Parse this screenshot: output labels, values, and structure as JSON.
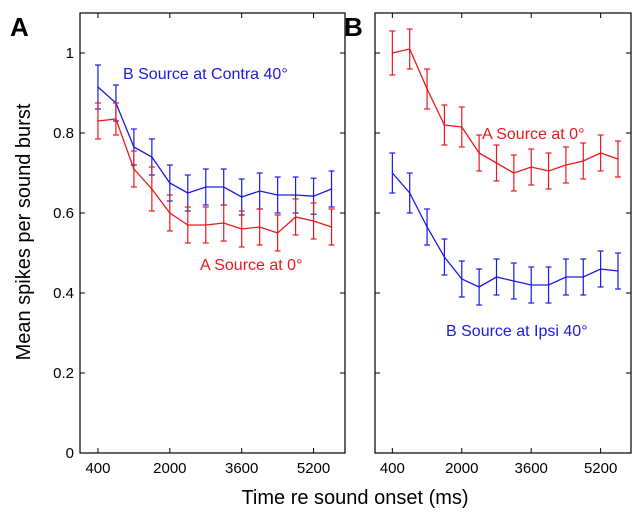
{
  "colors": {
    "red": "#e8191e",
    "blue": "#1a1ae6",
    "axis": "#000000",
    "background": "#ffffff"
  },
  "x_label": "Time re sound onset (ms)",
  "y_label": "Mean spikes per sound burst",
  "chart_data": [
    {
      "type": "line",
      "panel_label": "A",
      "x": [
        400,
        800,
        1200,
        1600,
        2000,
        2400,
        2800,
        3200,
        3600,
        4000,
        4400,
        4800,
        5200,
        5600
      ],
      "xticks": [
        400,
        2000,
        3600,
        5200
      ],
      "xtick_labels": [
        "400",
        "2000",
        "3600",
        "5200"
      ],
      "xlim": [
        0,
        5900
      ],
      "ylim": [
        0,
        1.1
      ],
      "yticks": [
        0,
        0.2,
        0.4,
        0.6,
        0.8,
        1
      ],
      "ytick_labels": [
        "0",
        "0.2",
        "0.4",
        "0.6",
        "0.8",
        "1"
      ],
      "error_bars": true,
      "series": [
        {
          "name": "B Source at Contra 40°",
          "color": "#1a1ae6",
          "values": [
            0.915,
            0.875,
            0.765,
            0.74,
            0.675,
            0.65,
            0.665,
            0.665,
            0.64,
            0.655,
            0.645,
            0.645,
            0.642,
            0.66
          ],
          "errors": [
            0.055,
            0.045,
            0.045,
            0.045,
            0.045,
            0.045,
            0.045,
            0.045,
            0.045,
            0.045,
            0.045,
            0.045,
            0.045,
            0.045
          ]
        },
        {
          "name": "A Source at 0°",
          "color": "#e8191e",
          "values": [
            0.83,
            0.835,
            0.71,
            0.66,
            0.6,
            0.57,
            0.57,
            0.575,
            0.56,
            0.565,
            0.55,
            0.59,
            0.58,
            0.565
          ],
          "errors": [
            0.045,
            0.04,
            0.045,
            0.055,
            0.045,
            0.045,
            0.045,
            0.045,
            0.045,
            0.045,
            0.045,
            0.045,
            0.045,
            0.045
          ]
        }
      ],
      "annotations": [
        {
          "text": "B Source at Contra 40°",
          "color": "#1a1ae6"
        },
        {
          "text": "A Source at 0°",
          "color": "#e8191e"
        }
      ]
    },
    {
      "type": "line",
      "panel_label": "B",
      "x": [
        400,
        800,
        1200,
        1600,
        2000,
        2400,
        2800,
        3200,
        3600,
        4000,
        4400,
        4800,
        5200,
        5600
      ],
      "xticks": [
        400,
        2000,
        3600,
        5200
      ],
      "xtick_labels": [
        "400",
        "2000",
        "3600",
        "5200"
      ],
      "xlim": [
        0,
        5900
      ],
      "ylim": [
        0,
        1.1
      ],
      "yticks": [
        0,
        0.2,
        0.4,
        0.6,
        0.8,
        1
      ],
      "ytick_labels": [],
      "error_bars": true,
      "series": [
        {
          "name": "A Source at 0°",
          "color": "#e8191e",
          "values": [
            1.0,
            1.01,
            0.91,
            0.82,
            0.815,
            0.75,
            0.725,
            0.7,
            0.715,
            0.705,
            0.72,
            0.73,
            0.75,
            0.735
          ],
          "errors": [
            0.055,
            0.05,
            0.05,
            0.05,
            0.05,
            0.045,
            0.045,
            0.045,
            0.045,
            0.045,
            0.045,
            0.045,
            0.045,
            0.045
          ]
        },
        {
          "name": "B Source at Ipsi 40°",
          "color": "#1a1ae6",
          "values": [
            0.7,
            0.65,
            0.565,
            0.49,
            0.435,
            0.415,
            0.44,
            0.43,
            0.42,
            0.42,
            0.44,
            0.44,
            0.46,
            0.455
          ],
          "errors": [
            0.05,
            0.05,
            0.045,
            0.045,
            0.045,
            0.045,
            0.045,
            0.045,
            0.045,
            0.045,
            0.045,
            0.045,
            0.045,
            0.045
          ]
        }
      ],
      "annotations": [
        {
          "text": "A Source at 0°",
          "color": "#e8191e"
        },
        {
          "text": "B Source at Ipsi 40°",
          "color": "#1a1ae6"
        }
      ]
    }
  ]
}
